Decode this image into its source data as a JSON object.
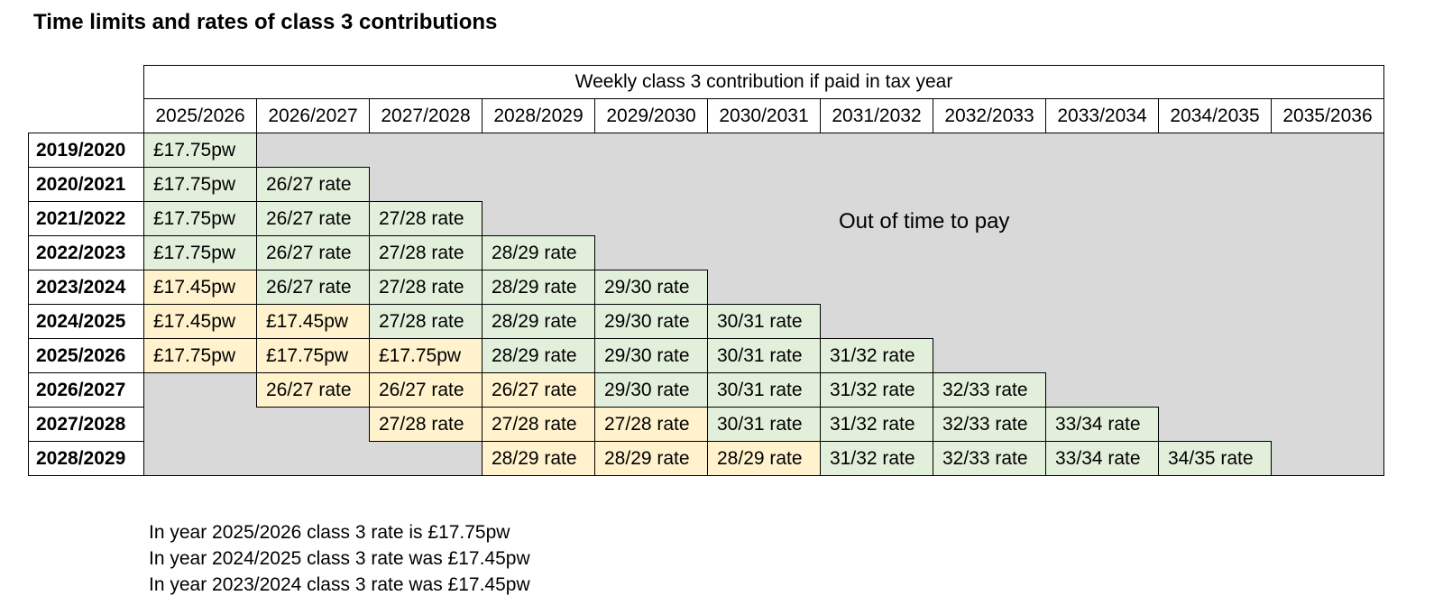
{
  "title": "Time limits and rates of class 3 contributions",
  "table": {
    "header": "Weekly class 3 contribution if paid in tax year",
    "columns": [
      "2025/2026",
      "2026/2027",
      "2027/2028",
      "2028/2029",
      "2029/2030",
      "2030/2031",
      "2031/2032",
      "2032/2033",
      "2033/2034",
      "2034/2035",
      "2035/2036"
    ],
    "rows": [
      {
        "year": "2019/2020",
        "start": 0,
        "cells": [
          [
            "£17.75pw",
            "g"
          ]
        ]
      },
      {
        "year": "2020/2021",
        "start": 0,
        "cells": [
          [
            "£17.75pw",
            "g"
          ],
          [
            "26/27 rate",
            "g"
          ]
        ]
      },
      {
        "year": "2021/2022",
        "start": 0,
        "cells": [
          [
            "£17.75pw",
            "g"
          ],
          [
            "26/27 rate",
            "g"
          ],
          [
            "27/28 rate",
            "g"
          ]
        ]
      },
      {
        "year": "2022/2023",
        "start": 0,
        "cells": [
          [
            "£17.75pw",
            "g"
          ],
          [
            "26/27 rate",
            "g"
          ],
          [
            "27/28 rate",
            "g"
          ],
          [
            "28/29 rate",
            "g"
          ]
        ]
      },
      {
        "year": "2023/2024",
        "start": 0,
        "cells": [
          [
            "£17.45pw",
            "y"
          ],
          [
            "26/27 rate",
            "g"
          ],
          [
            "27/28 rate",
            "g"
          ],
          [
            "28/29 rate",
            "g"
          ],
          [
            "29/30 rate",
            "g"
          ]
        ]
      },
      {
        "year": "2024/2025",
        "start": 0,
        "cells": [
          [
            "£17.45pw",
            "y"
          ],
          [
            "£17.45pw",
            "y"
          ],
          [
            "27/28 rate",
            "g"
          ],
          [
            "28/29 rate",
            "g"
          ],
          [
            "29/30 rate",
            "g"
          ],
          [
            "30/31 rate",
            "g"
          ]
        ]
      },
      {
        "year": "2025/2026",
        "start": 0,
        "cells": [
          [
            "£17.75pw",
            "y"
          ],
          [
            "£17.75pw",
            "y"
          ],
          [
            "£17.75pw",
            "y"
          ],
          [
            "28/29 rate",
            "g"
          ],
          [
            "29/30 rate",
            "g"
          ],
          [
            "30/31 rate",
            "g"
          ],
          [
            "31/32 rate",
            "g"
          ]
        ]
      },
      {
        "year": "2026/2027",
        "start": 1,
        "cells": [
          [
            "26/27 rate",
            "y"
          ],
          [
            "26/27 rate",
            "y"
          ],
          [
            "26/27 rate",
            "y"
          ],
          [
            "29/30 rate",
            "g"
          ],
          [
            "30/31 rate",
            "g"
          ],
          [
            "31/32 rate",
            "g"
          ],
          [
            "32/33 rate",
            "g"
          ]
        ]
      },
      {
        "year": "2027/2028",
        "start": 2,
        "cells": [
          [
            "27/28 rate",
            "y"
          ],
          [
            "27/28 rate",
            "y"
          ],
          [
            "27/28 rate",
            "y"
          ],
          [
            "30/31 rate",
            "g"
          ],
          [
            "31/32 rate",
            "g"
          ],
          [
            "32/33 rate",
            "g"
          ],
          [
            "33/34 rate",
            "g"
          ]
        ]
      },
      {
        "year": "2028/2029",
        "start": 3,
        "cells": [
          [
            "28/29 rate",
            "y"
          ],
          [
            "28/29 rate",
            "y"
          ],
          [
            "28/29 rate",
            "y"
          ],
          [
            "31/32 rate",
            "g"
          ],
          [
            "32/33 rate",
            "g"
          ],
          [
            "33/34 rate",
            "g"
          ],
          [
            "34/35 rate",
            "g"
          ]
        ]
      }
    ],
    "out_of_time": "Out of time to pay"
  },
  "notes": [
    "In year 2025/2026 class 3 rate is £17.75pw",
    "In year 2024/2025 class 3 rate was £17.45pw",
    "In year 2023/2024 class 3 rate was £17.45pw"
  ],
  "colors": {
    "green": "#e2efda",
    "yellow": "#fff2cc",
    "grey": "#d9d9d9"
  }
}
